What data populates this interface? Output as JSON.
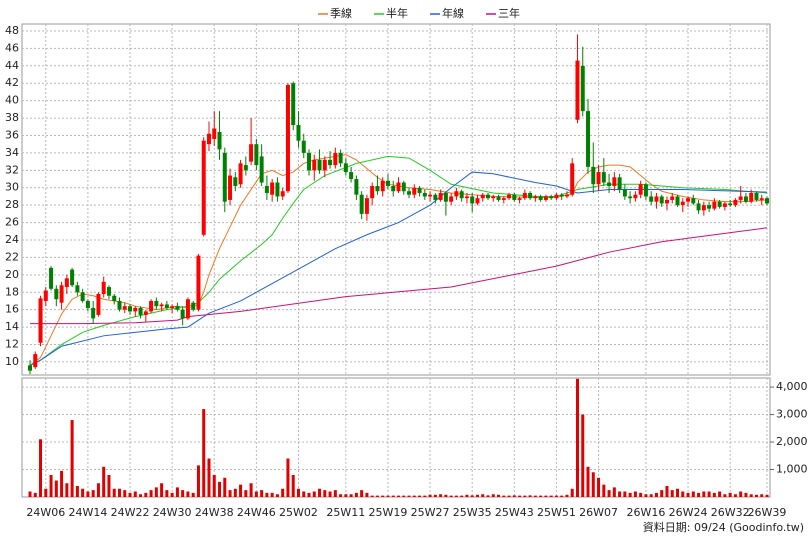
{
  "chart_data": {
    "type": "candlestick",
    "legend_position": "top",
    "grid": true,
    "up_color": "#ff0000",
    "down_color": "#008000",
    "volume_color": "#e00000",
    "note": "資料日期: 09/24  (Goodinfo.tw)",
    "ylim": [
      8.5,
      48.8
    ],
    "yticks": [
      10,
      12,
      14,
      16,
      18,
      20,
      22,
      24,
      26,
      28,
      30,
      32,
      34,
      36,
      38,
      40,
      42,
      44,
      46,
      48
    ],
    "y2lim": [
      0,
      4330
    ],
    "y2ticks": [
      {
        "value": 1000,
        "label": "1,000"
      },
      {
        "value": 2000,
        "label": "2,000"
      },
      {
        "value": 3000,
        "label": "3,000"
      },
      {
        "value": 4000,
        "label": "4,000"
      }
    ],
    "categories": [
      null,
      null,
      null,
      "24W06",
      null,
      null,
      null,
      null,
      null,
      null,
      null,
      "24W14",
      null,
      null,
      null,
      null,
      null,
      null,
      null,
      "24W22",
      null,
      null,
      null,
      null,
      null,
      null,
      null,
      "24W30",
      null,
      null,
      null,
      null,
      null,
      null,
      null,
      "24W38",
      null,
      null,
      null,
      null,
      null,
      null,
      null,
      "24W46",
      null,
      null,
      null,
      null,
      null,
      null,
      null,
      "25W02",
      null,
      null,
      null,
      null,
      null,
      null,
      null,
      null,
      "25W11",
      null,
      null,
      null,
      null,
      null,
      null,
      null,
      "25W19",
      null,
      null,
      null,
      null,
      null,
      null,
      null,
      "25W27",
      null,
      null,
      null,
      null,
      null,
      null,
      null,
      "25W35",
      null,
      null,
      null,
      null,
      null,
      null,
      null,
      "25W43",
      null,
      null,
      null,
      null,
      null,
      null,
      null,
      "25W51",
      null,
      null,
      null,
      null,
      null,
      null,
      null,
      "26W07",
      null,
      null,
      null,
      null,
      null,
      null,
      null,
      null,
      "26W16",
      null,
      null,
      null,
      null,
      null,
      null,
      null,
      "26W24",
      null,
      null,
      null,
      null,
      null,
      null,
      null,
      "26W32",
      null,
      null,
      null,
      null,
      null,
      null,
      "26W39"
    ],
    "ohlc": [
      [
        9.6,
        10.2,
        8.6,
        9.0
      ],
      [
        9.4,
        11.2,
        9.2,
        10.9
      ],
      [
        12.2,
        17.6,
        11.8,
        17.3
      ],
      [
        17.0,
        18.6,
        16.4,
        18.2
      ],
      [
        20.8,
        21.0,
        18.2,
        18.4
      ],
      [
        18.4,
        18.8,
        16.4,
        17.2
      ],
      [
        16.8,
        19.2,
        16.0,
        18.8
      ],
      [
        18.6,
        20.0,
        17.8,
        19.6
      ],
      [
        20.6,
        20.8,
        18.6,
        18.8
      ],
      [
        18.8,
        19.2,
        17.6,
        18.0
      ],
      [
        18.0,
        18.4,
        16.8,
        17.0
      ],
      [
        17.0,
        17.2,
        15.8,
        16.2
      ],
      [
        16.2,
        17.0,
        14.4,
        15.0
      ],
      [
        15.4,
        18.0,
        15.2,
        17.8
      ],
      [
        17.8,
        19.8,
        17.4,
        19.2
      ],
      [
        18.6,
        18.8,
        17.2,
        17.6
      ],
      [
        17.6,
        17.8,
        16.6,
        17.0
      ],
      [
        17.0,
        17.4,
        15.8,
        16.0
      ],
      [
        16.0,
        16.8,
        15.6,
        16.4
      ],
      [
        16.4,
        16.6,
        15.4,
        15.8
      ],
      [
        15.8,
        16.4,
        15.2,
        16.2
      ],
      [
        16.2,
        16.4,
        15.0,
        15.4
      ],
      [
        15.4,
        16.0,
        14.6,
        15.8
      ],
      [
        15.8,
        17.2,
        15.6,
        17.0
      ],
      [
        17.0,
        17.4,
        16.0,
        16.4
      ],
      [
        16.4,
        16.8,
        15.8,
        16.6
      ],
      [
        16.6,
        17.0,
        16.0,
        16.2
      ],
      [
        16.2,
        16.6,
        15.6,
        16.4
      ],
      [
        16.4,
        16.8,
        15.8,
        16.0
      ],
      [
        16.0,
        16.4,
        14.2,
        15.0
      ],
      [
        15.0,
        17.4,
        14.8,
        17.2
      ],
      [
        16.8,
        17.0,
        15.8,
        16.0
      ],
      [
        16.0,
        22.4,
        15.8,
        22.2
      ],
      [
        24.6,
        35.8,
        24.4,
        35.4
      ],
      [
        35.0,
        37.6,
        34.2,
        36.2
      ],
      [
        35.6,
        38.8,
        34.8,
        36.8
      ],
      [
        36.4,
        38.8,
        33.2,
        34.4
      ],
      [
        34.0,
        34.6,
        27.2,
        28.4
      ],
      [
        28.6,
        32.2,
        28.0,
        31.4
      ],
      [
        31.2,
        31.8,
        29.6,
        30.2
      ],
      [
        30.4,
        33.2,
        30.0,
        32.8
      ],
      [
        32.6,
        33.6,
        31.4,
        32.0
      ],
      [
        33.0,
        38.0,
        32.6,
        35.0
      ],
      [
        35.0,
        35.6,
        32.0,
        32.6
      ],
      [
        33.6,
        35.0,
        30.2,
        30.6
      ],
      [
        30.2,
        31.4,
        28.6,
        29.4
      ],
      [
        29.2,
        31.0,
        28.4,
        30.6
      ],
      [
        30.6,
        31.2,
        28.4,
        29.0
      ],
      [
        29.0,
        30.0,
        28.6,
        29.6
      ],
      [
        29.6,
        42.0,
        29.4,
        41.8
      ],
      [
        42.0,
        42.2,
        36.6,
        37.2
      ],
      [
        37.2,
        38.8,
        34.6,
        35.4
      ],
      [
        35.4,
        36.2,
        33.4,
        34.0
      ],
      [
        34.0,
        34.4,
        31.4,
        32.0
      ],
      [
        32.0,
        33.8,
        30.8,
        33.2
      ],
      [
        33.2,
        34.4,
        31.6,
        32.0
      ],
      [
        32.0,
        33.6,
        31.2,
        33.2
      ],
      [
        33.2,
        34.2,
        32.2,
        32.6
      ],
      [
        32.6,
        34.6,
        32.2,
        34.0
      ],
      [
        34.0,
        34.4,
        32.4,
        32.8
      ],
      [
        32.8,
        33.4,
        31.4,
        31.8
      ],
      [
        31.8,
        32.4,
        30.6,
        31.0
      ],
      [
        31.0,
        31.4,
        28.6,
        29.2
      ],
      [
        29.2,
        29.6,
        26.4,
        27.0
      ],
      [
        27.0,
        29.2,
        26.2,
        28.8
      ],
      [
        28.8,
        30.6,
        28.0,
        30.2
      ],
      [
        30.2,
        31.4,
        29.2,
        29.6
      ],
      [
        29.6,
        31.2,
        29.0,
        30.8
      ],
      [
        30.8,
        31.6,
        29.8,
        30.2
      ],
      [
        30.2,
        30.8,
        29.0,
        29.6
      ],
      [
        29.6,
        31.2,
        29.4,
        30.6
      ],
      [
        30.6,
        30.8,
        29.2,
        29.6
      ],
      [
        29.6,
        30.0,
        28.8,
        29.2
      ],
      [
        29.2,
        30.4,
        28.8,
        30.0
      ],
      [
        30.0,
        30.2,
        29.0,
        29.4
      ],
      [
        29.4,
        29.8,
        28.6,
        29.0
      ],
      [
        29.0,
        29.6,
        28.4,
        29.2
      ],
      [
        29.2,
        29.4,
        28.2,
        28.6
      ],
      [
        28.6,
        29.8,
        28.4,
        29.4
      ],
      [
        29.4,
        29.6,
        26.8,
        28.4
      ],
      [
        28.4,
        29.4,
        28.0,
        29.0
      ],
      [
        29.0,
        30.0,
        28.6,
        29.6
      ],
      [
        29.6,
        29.8,
        28.4,
        28.8
      ],
      [
        28.8,
        29.4,
        28.2,
        29.0
      ],
      [
        29.0,
        29.4,
        27.2,
        28.2
      ],
      [
        28.2,
        29.2,
        28.0,
        28.8
      ],
      [
        28.8,
        29.4,
        28.4,
        29.2
      ],
      [
        29.2,
        29.4,
        28.6,
        28.8
      ],
      [
        28.8,
        29.2,
        28.4,
        29.0
      ],
      [
        29.0,
        29.2,
        28.4,
        28.6
      ],
      [
        28.6,
        29.0,
        28.2,
        28.8
      ],
      [
        28.8,
        29.4,
        28.6,
        29.2
      ],
      [
        29.2,
        29.4,
        28.4,
        28.6
      ],
      [
        28.6,
        29.0,
        28.2,
        28.8
      ],
      [
        28.8,
        29.8,
        28.6,
        29.4
      ],
      [
        29.4,
        29.6,
        28.6,
        28.8
      ],
      [
        28.8,
        29.2,
        28.4,
        29.0
      ],
      [
        29.0,
        29.2,
        28.4,
        28.6
      ],
      [
        28.6,
        29.2,
        28.4,
        29.0
      ],
      [
        29.0,
        29.2,
        28.6,
        28.8
      ],
      [
        28.8,
        29.4,
        28.6,
        29.2
      ],
      [
        29.2,
        29.4,
        28.6,
        29.0
      ],
      [
        29.0,
        29.6,
        28.8,
        29.2
      ],
      [
        29.2,
        33.4,
        29.0,
        32.8
      ],
      [
        37.8,
        47.6,
        37.4,
        44.6
      ],
      [
        44.0,
        46.2,
        38.2,
        38.8
      ],
      [
        38.8,
        40.2,
        31.6,
        32.4
      ],
      [
        32.4,
        35.2,
        29.4,
        30.4
      ],
      [
        30.4,
        32.6,
        29.6,
        31.8
      ],
      [
        31.8,
        33.4,
        30.2,
        30.6
      ],
      [
        30.6,
        31.6,
        29.4,
        30.2
      ],
      [
        30.2,
        31.8,
        29.6,
        31.2
      ],
      [
        31.2,
        31.6,
        29.4,
        29.8
      ],
      [
        29.8,
        30.4,
        28.6,
        29.0
      ],
      [
        29.0,
        29.6,
        28.2,
        28.8
      ],
      [
        28.8,
        29.6,
        28.4,
        29.2
      ],
      [
        29.2,
        30.8,
        28.8,
        30.4
      ],
      [
        30.4,
        30.6,
        28.6,
        29.0
      ],
      [
        29.0,
        29.6,
        28.0,
        28.4
      ],
      [
        28.4,
        29.4,
        27.6,
        29.0
      ],
      [
        29.0,
        29.2,
        27.8,
        28.2
      ],
      [
        28.2,
        29.0,
        27.4,
        28.6
      ],
      [
        28.6,
        29.4,
        28.2,
        29.0
      ],
      [
        29.0,
        29.2,
        27.8,
        28.0
      ],
      [
        28.0,
        28.8,
        27.2,
        28.4
      ],
      [
        28.4,
        29.0,
        27.8,
        28.8
      ],
      [
        28.8,
        29.2,
        28.0,
        28.2
      ],
      [
        28.2,
        28.6,
        27.0,
        27.4
      ],
      [
        27.4,
        28.4,
        26.8,
        28.0
      ],
      [
        28.0,
        28.4,
        27.2,
        27.6
      ],
      [
        27.6,
        28.8,
        27.4,
        28.4
      ],
      [
        28.4,
        28.6,
        27.6,
        27.8
      ],
      [
        27.8,
        28.4,
        27.4,
        28.2
      ],
      [
        28.2,
        28.6,
        27.8,
        28.0
      ],
      [
        28.0,
        28.8,
        27.8,
        28.6
      ],
      [
        28.6,
        30.2,
        28.2,
        29.0
      ],
      [
        29.0,
        29.4,
        28.2,
        28.4
      ],
      [
        28.4,
        29.8,
        28.2,
        29.4
      ],
      [
        29.4,
        29.6,
        28.4,
        28.6
      ],
      [
        28.6,
        29.2,
        28.0,
        28.8
      ],
      [
        28.8,
        29.0,
        28.0,
        28.2
      ]
    ],
    "volume": [
      200,
      150,
      2100,
      300,
      800,
      600,
      950,
      500,
      2800,
      400,
      300,
      200,
      250,
      500,
      1100,
      800,
      300,
      300,
      250,
      150,
      200,
      100,
      150,
      250,
      350,
      500,
      250,
      150,
      350,
      250,
      200,
      150,
      1150,
      3200,
      1400,
      800,
      550,
      700,
      250,
      300,
      450,
      250,
      500,
      200,
      250,
      150,
      150,
      100,
      300,
      1400,
      800,
      300,
      200,
      150,
      200,
      300,
      250,
      200,
      250,
      100,
      100,
      100,
      150,
      250,
      150,
      50,
      50,
      50,
      50,
      50,
      50,
      50,
      50,
      50,
      50,
      50,
      80,
      80,
      100,
      80,
      50,
      50,
      50,
      80,
      60,
      80,
      100,
      60,
      100,
      80,
      50,
      50,
      60,
      50,
      50,
      60,
      50,
      50,
      50,
      50,
      50,
      50,
      80,
      300,
      4300,
      3000,
      1100,
      900,
      700,
      450,
      250,
      350,
      200,
      200,
      150,
      200,
      150,
      100,
      100,
      150,
      250,
      400,
      250,
      300,
      200,
      150,
      200,
      150,
      200,
      200,
      150,
      200,
      100,
      150,
      100,
      200,
      150,
      100,
      80,
      100,
      80
    ],
    "series": [
      {
        "name": "季線",
        "color": "#f07820",
        "x": [
          0,
          2,
          4,
          6,
          8,
          10,
          12,
          14,
          16,
          18,
          20,
          22,
          24,
          26,
          28,
          30,
          32,
          33,
          34,
          36,
          38,
          40,
          42,
          44,
          46,
          48,
          50,
          52,
          54,
          56,
          58,
          60,
          62,
          64,
          66,
          68,
          72,
          76,
          80,
          88,
          96,
          100,
          103,
          104,
          106,
          108,
          110,
          112,
          114,
          116,
          118,
          120,
          124,
          128,
          132,
          136,
          140
        ],
        "values": [
          9.6,
          10.5,
          13,
          15.5,
          17.2,
          17.8,
          17.6,
          17.2,
          17.0,
          16.8,
          16.4,
          16.2,
          16.0,
          16.2,
          16.4,
          16.2,
          16.6,
          18,
          20,
          23,
          25.5,
          28,
          29.8,
          31.6,
          32,
          31.4,
          31.8,
          32.8,
          33.2,
          33.4,
          33.6,
          33.8,
          33.2,
          32.2,
          31.2,
          30.4,
          30,
          29.8,
          29.4,
          29.0,
          28.9,
          28.9,
          29.3,
          30.6,
          31.8,
          32.4,
          32.6,
          32.6,
          32.4,
          31.4,
          30.4,
          29.6,
          29.0,
          28.6,
          28.4,
          28.4,
          28.6
        ]
      },
      {
        "name": "半年",
        "color": "#22cc22",
        "x": [
          0,
          2,
          6,
          10,
          14,
          20,
          26,
          30,
          32,
          34,
          36,
          40,
          44,
          46,
          48,
          50,
          52,
          56,
          62,
          68,
          72,
          76,
          80,
          88,
          96,
          100,
          104,
          110,
          116,
          124,
          132,
          140
        ],
        "values": [
          9.6,
          10.2,
          12,
          13.4,
          14.2,
          15.2,
          16,
          16.4,
          16.8,
          18,
          19.5,
          21.6,
          23.5,
          24.6,
          26.5,
          28.2,
          29.8,
          31.4,
          32.8,
          33.6,
          33.4,
          32,
          30.4,
          29.4,
          29,
          29,
          29.8,
          30.4,
          30.4,
          30,
          29.8,
          29.4
        ]
      },
      {
        "name": "年線",
        "color": "#2060e0",
        "x": [
          0,
          2,
          6,
          14,
          26,
          30,
          34,
          40,
          46,
          52,
          58,
          64,
          70,
          76,
          80,
          84,
          88,
          96,
          100,
          104,
          110,
          124,
          140
        ],
        "values": [
          9.6,
          10.2,
          11.8,
          13,
          13.8,
          14,
          15.6,
          17,
          19,
          21,
          23,
          24.6,
          26,
          28,
          30,
          31.8,
          31.6,
          30.6,
          30.2,
          29.4,
          29.8,
          29.8,
          29.5
        ]
      },
      {
        "name": "三年",
        "color": "#cc1177",
        "x": [
          0,
          10,
          20,
          28,
          30,
          40,
          60,
          80,
          100,
          110,
          120,
          130,
          140
        ],
        "values": [
          14.4,
          14.4,
          14.5,
          14.8,
          15.2,
          15.8,
          17.5,
          18.6,
          21.0,
          22.6,
          23.8,
          24.6,
          25.4
        ]
      }
    ]
  }
}
